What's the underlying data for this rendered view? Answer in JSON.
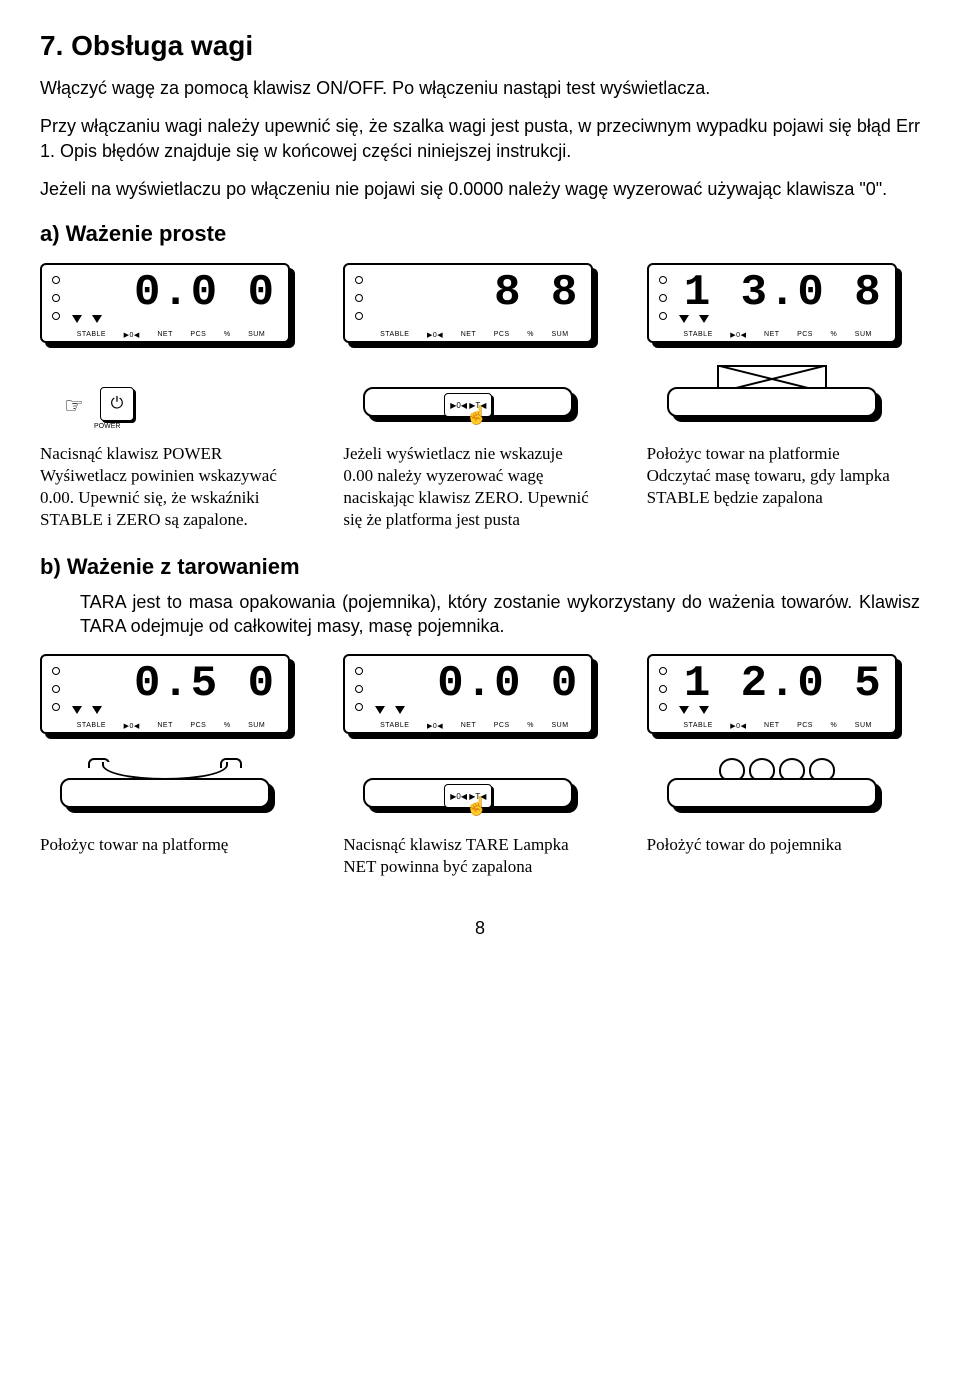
{
  "heading_main": "7. Obsługa wagi",
  "para1": "Włączyć wagę za pomocą klawisz ON/OFF. Po włączeniu nastąpi test wyświetlacza.",
  "para2": "Przy włączaniu wagi należy upewnić się, że szalka wagi jest pusta, w przeciwnym wypadku pojawi się błąd Err 1. Opis błędów znajduje się w końcowej części niniejszej instrukcji.",
  "para3": "Jeżeli na wyświetlaczu po włączeniu nie pojawi się 0.0000 należy wagę wyzerować używając klawisza \"0\".",
  "heading_a": "a) Ważenie proste",
  "heading_b": "b) Ważenie z tarowaniem",
  "tara_text": "TARA jest to masa opakowania (pojemnika), który zostanie wykorzystany do ważenia towarów. Klawisz TARA odejmuje od całkowitej masy, masę pojemnika.",
  "status_labels": [
    "STABLE",
    "▶0◀",
    "NET",
    "PCS",
    "%",
    "SUM"
  ],
  "section_a": {
    "panels": [
      {
        "digits": "0.0 0",
        "btn_label": "POWER",
        "btn_icon": "⏻",
        "caption": "Nacisnąć klawisz POWER Wyśiwetlacz powinien wskazywać 0.00. Upewnić się, że wskaźniki STABLE i ZERO są zapalone."
      },
      {
        "digits": "8 8",
        "btn_label": "▶0◀  ▶T◀",
        "caption": "Jeżeli wyświetlacz nie wskazuje 0.00 należy wyzerować wagę naciskając klawisz ZERO. Upewnić się że platforma jest pusta"
      },
      {
        "digits": "1 3.0 8",
        "caption": "Położyc towar na platformie Odczytać masę towaru, gdy lampka STABLE będzie zapalona"
      }
    ]
  },
  "section_b": {
    "panels": [
      {
        "digits": "0.5 0",
        "caption": "Położyc towar na platformę"
      },
      {
        "digits": "0.0 0",
        "btn_label": "▶0◀  ▶T◀",
        "mini": "000",
        "caption": "Nacisnąć klawisz TARE Lampka NET powinna być zapalona"
      },
      {
        "digits": "1 2.0 5",
        "caption": "Położyć towar do pojemnika"
      }
    ]
  },
  "page_number": "8"
}
